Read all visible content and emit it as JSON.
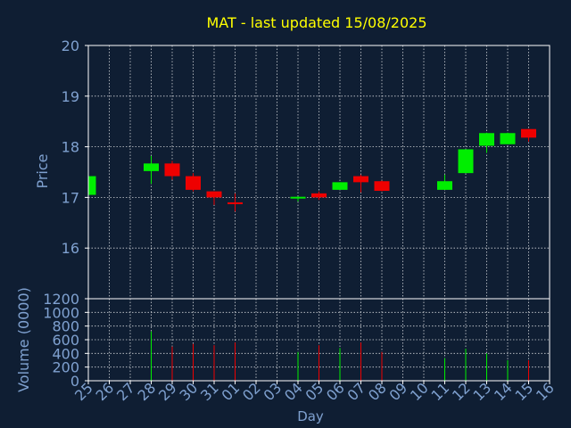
{
  "chart_data": {
    "type": "candlestick",
    "title": "MAT - last updated 15/08/2025",
    "xlabel": "Day",
    "price_panel": {
      "ylabel": "Price",
      "ylim": [
        15.0,
        20.0
      ],
      "yticks": [
        "16",
        "17",
        "18",
        "19",
        "20"
      ],
      "grid": true
    },
    "volume_panel": {
      "ylabel": "Volume (0000)",
      "ylim": [
        0,
        1200
      ],
      "yticks": [
        "0",
        "200",
        "400",
        "600",
        "800",
        "1000",
        "1200"
      ],
      "grid": true
    },
    "days": [
      "25",
      "26",
      "27",
      "28",
      "29",
      "30",
      "31",
      "01",
      "02",
      "03",
      "04",
      "05",
      "06",
      "07",
      "08",
      "09",
      "10",
      "11",
      "12",
      "13",
      "14",
      "15",
      "16"
    ],
    "candles": [
      {
        "day": "25",
        "open": 17.05,
        "high": 17.42,
        "low": 17.05,
        "close": 17.42,
        "volume": 0
      },
      {
        "day": "28",
        "open": 17.52,
        "high": 17.82,
        "low": 17.27,
        "close": 17.67,
        "volume": 720
      },
      {
        "day": "29",
        "open": 17.67,
        "high": 17.72,
        "low": 17.35,
        "close": 17.42,
        "volume": 500
      },
      {
        "day": "30",
        "open": 17.42,
        "high": 17.48,
        "low": 17.12,
        "close": 17.15,
        "volume": 540
      },
      {
        "day": "31",
        "open": 17.12,
        "high": 17.12,
        "low": 16.85,
        "close": 17.0,
        "volume": 520
      },
      {
        "day": "01",
        "open": 16.9,
        "high": 17.08,
        "low": 16.72,
        "close": 16.87,
        "volume": 560
      },
      {
        "day": "04",
        "open": 16.99,
        "high": 17.02,
        "low": 16.92,
        "close": 17.0,
        "volume": 420
      },
      {
        "day": "05",
        "open": 17.08,
        "high": 17.12,
        "low": 16.95,
        "close": 17.0,
        "volume": 520
      },
      {
        "day": "06",
        "open": 17.15,
        "high": 17.3,
        "low": 17.15,
        "close": 17.3,
        "volume": 480
      },
      {
        "day": "07",
        "open": 17.42,
        "high": 17.45,
        "low": 17.1,
        "close": 17.3,
        "volume": 560
      },
      {
        "day": "08",
        "open": 17.32,
        "high": 17.33,
        "low": 17.12,
        "close": 17.13,
        "volume": 420
      },
      {
        "day": "11",
        "open": 17.15,
        "high": 17.45,
        "low": 17.15,
        "close": 17.32,
        "volume": 330
      },
      {
        "day": "12",
        "open": 17.48,
        "high": 17.95,
        "low": 17.48,
        "close": 17.95,
        "volume": 470
      },
      {
        "day": "13",
        "open": 18.02,
        "high": 18.28,
        "low": 17.88,
        "close": 18.27,
        "volume": 400
      },
      {
        "day": "14",
        "open": 18.05,
        "high": 18.28,
        "low": 18.05,
        "close": 18.27,
        "volume": 300
      },
      {
        "day": "15",
        "open": 18.35,
        "high": 18.35,
        "low": 18.1,
        "close": 18.18,
        "volume": 300
      }
    ],
    "colors": {
      "background": "#0f1e33",
      "up": "#00ee00",
      "down": "#ee0000",
      "title": "#ffff00",
      "axis_text": "#7fa1d0",
      "frame": "#ffffff",
      "grid": "#ffffff"
    }
  }
}
